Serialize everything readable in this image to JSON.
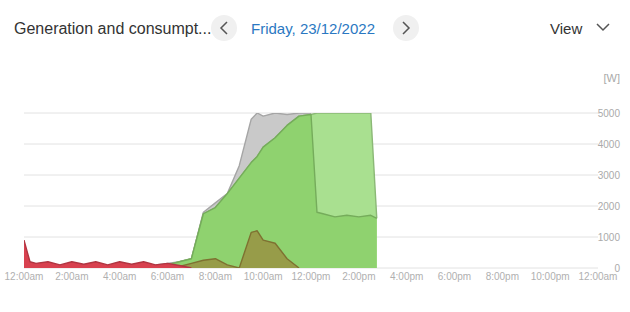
{
  "chart_data": {
    "type": "area",
    "title": "Generation and consumpt...",
    "subtitle": "Friday, 23/12/2022",
    "annotations": [
      "View"
    ],
    "ylabel": "[W]",
    "x": [
      0,
      0.25,
      0.5,
      1,
      1.5,
      2,
      2.5,
      3,
      3.5,
      4,
      4.5,
      5,
      5.5,
      6,
      6.5,
      7,
      7.5,
      8,
      8.5,
      9,
      9.5,
      9.75,
      10,
      10.5,
      11,
      11.5,
      12,
      12.25,
      12.5,
      13,
      13.5,
      14,
      14.5,
      14.75
    ],
    "xlim": [
      0,
      24
    ],
    "xticks": [
      {
        "value": 0,
        "label": "12:00am"
      },
      {
        "value": 2,
        "label": "2:00am"
      },
      {
        "value": 4,
        "label": "4:00am"
      },
      {
        "value": 6,
        "label": "6:00am"
      },
      {
        "value": 8,
        "label": "8:00am"
      },
      {
        "value": 10,
        "label": "10:00am"
      },
      {
        "value": 12,
        "label": "12:00pm"
      },
      {
        "value": 14,
        "label": "2:00pm"
      },
      {
        "value": 16,
        "label": "4:00pm"
      },
      {
        "value": 18,
        "label": "6:00pm"
      },
      {
        "value": 20,
        "label": "8:00pm"
      },
      {
        "value": 22,
        "label": "10:00pm"
      },
      {
        "value": 24,
        "label": "12:00am"
      }
    ],
    "ylim": [
      0,
      5000
    ],
    "yticks": [
      0,
      1000,
      2000,
      3000,
      4000,
      5000
    ],
    "grid": true,
    "series": [
      {
        "color": "#c9c9c9",
        "values": [
          null,
          null,
          null,
          null,
          null,
          null,
          null,
          null,
          null,
          null,
          null,
          null,
          100,
          150,
          200,
          300,
          1800,
          2100,
          2400,
          3300,
          4800,
          5000,
          4900,
          5000,
          4950,
          5000,
          5000,
          null,
          null,
          null,
          null,
          null,
          null,
          null
        ]
      },
      {
        "color": "#a9e090",
        "values": [
          null,
          null,
          null,
          null,
          null,
          null,
          null,
          null,
          null,
          null,
          null,
          null,
          null,
          100,
          200,
          300,
          1750,
          1950,
          2400,
          2900,
          3400,
          3600,
          3900,
          4200,
          4600,
          4900,
          4950,
          5000,
          5000,
          5000,
          5000,
          5000,
          5000,
          1600
        ]
      },
      {
        "color": "#8fd26f",
        "values": [
          null,
          null,
          null,
          null,
          null,
          null,
          null,
          null,
          null,
          null,
          null,
          null,
          null,
          100,
          200,
          300,
          1750,
          1950,
          2400,
          2900,
          3400,
          3600,
          3900,
          4200,
          4600,
          4900,
          4950,
          1800,
          1750,
          1650,
          1700,
          1650,
          1700,
          1600
        ]
      },
      {
        "color": "#9a8a3c",
        "values": [
          null,
          null,
          null,
          null,
          null,
          null,
          null,
          null,
          null,
          null,
          null,
          null,
          null,
          null,
          50,
          150,
          250,
          300,
          100,
          0,
          1150,
          1200,
          900,
          800,
          300,
          0,
          null,
          null,
          null,
          null,
          null,
          null,
          null,
          null
        ]
      },
      {
        "color": "#d8414f",
        "values": [
          900,
          200,
          150,
          200,
          100,
          200,
          120,
          200,
          100,
          200,
          120,
          200,
          100,
          150,
          80,
          0,
          null,
          null,
          null,
          null,
          null,
          null,
          null,
          null,
          null,
          null,
          null,
          null,
          null,
          null,
          null,
          null,
          null,
          null
        ]
      }
    ]
  }
}
